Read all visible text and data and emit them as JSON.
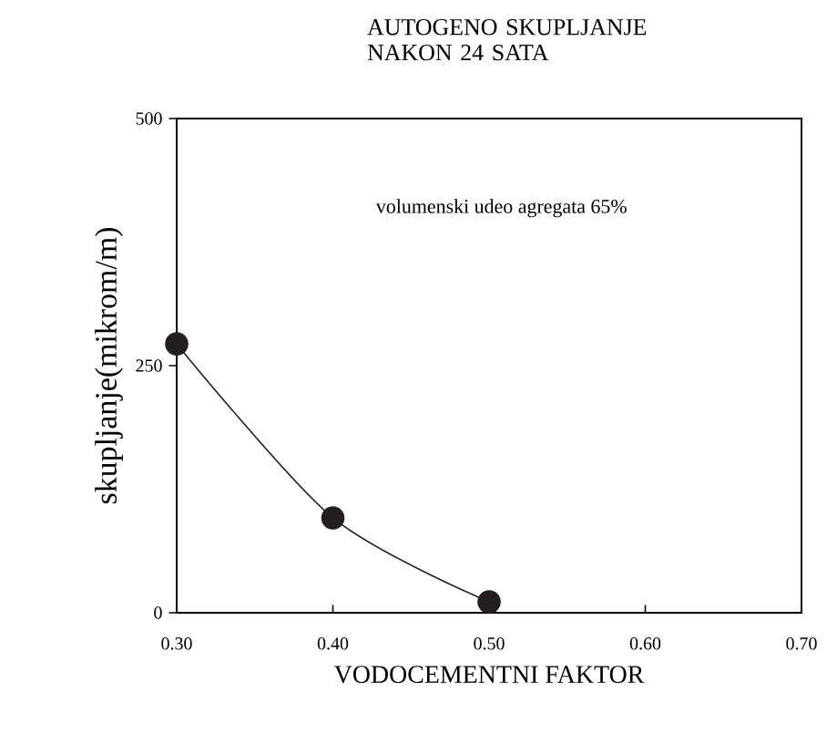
{
  "chart_data": {
    "type": "line",
    "title": "AUTOGENO SKUPLJANJE NAKON 24 SATA",
    "xlabel": "VODOCEMENTNI FAKTOR",
    "ylabel": "skupljanje(mikrom/m)",
    "annotations": [
      "volumenski udeo agregata 65%"
    ],
    "x": [
      0.3,
      0.4,
      0.5
    ],
    "series": [
      {
        "color": "#231f20",
        "values": [
          272,
          96,
          11
        ]
      }
    ],
    "xlim": [
      0.3,
      0.7
    ],
    "ylim": [
      0,
      500
    ],
    "xticks": [
      {
        "value": 0.3,
        "label": "0.30"
      },
      {
        "value": 0.4,
        "label": "0.40"
      },
      {
        "value": 0.5,
        "label": "0.50"
      },
      {
        "value": 0.6,
        "label": "0.60"
      },
      {
        "value": 0.7,
        "label": "0.70"
      }
    ],
    "yticks": [
      0,
      250,
      500
    ],
    "grid": false,
    "marker": "circle",
    "line_style": "solid"
  }
}
